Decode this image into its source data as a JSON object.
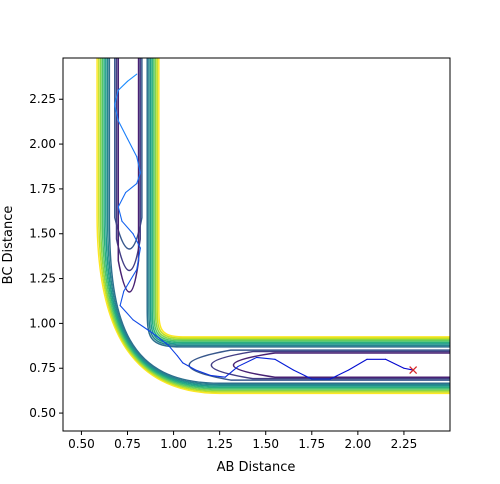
{
  "chart_data": {
    "type": "contour",
    "title": "",
    "xlabel": "AB Distance",
    "ylabel": "BC Distance",
    "xlim": [
      0.4,
      2.5
    ],
    "ylim": [
      0.4,
      2.48
    ],
    "xticks": [
      "0.50",
      "0.75",
      "1.00",
      "1.25",
      "1.50",
      "1.75",
      "2.00",
      "2.25"
    ],
    "yticks": [
      "0.50",
      "0.75",
      "1.00",
      "1.25",
      "1.50",
      "1.75",
      "2.00",
      "2.25"
    ],
    "grid": false,
    "legend": "none",
    "colormap": "viridis",
    "contour_levels": 12,
    "trajectory_color_start": "#1e90ff",
    "trajectory_color_end": "#0000cd",
    "trajectory": [
      [
        0.8,
        2.39
      ],
      [
        0.75,
        2.35
      ],
      [
        0.7,
        2.3
      ],
      [
        0.68,
        2.22
      ],
      [
        0.7,
        2.13
      ],
      [
        0.75,
        2.03
      ],
      [
        0.8,
        1.93
      ],
      [
        0.82,
        1.84
      ],
      [
        0.8,
        1.78
      ],
      [
        0.74,
        1.73
      ],
      [
        0.7,
        1.65
      ],
      [
        0.72,
        1.57
      ],
      [
        0.78,
        1.5
      ],
      [
        0.82,
        1.42
      ],
      [
        0.8,
        1.3
      ],
      [
        0.73,
        1.18
      ],
      [
        0.71,
        1.1
      ],
      [
        0.78,
        1.02
      ],
      [
        0.88,
        0.95
      ],
      [
        0.97,
        0.88
      ],
      [
        1.02,
        0.82
      ],
      [
        1.05,
        0.78
      ],
      [
        1.12,
        0.74
      ],
      [
        1.2,
        0.71
      ],
      [
        1.28,
        0.7
      ],
      [
        1.35,
        0.76
      ],
      [
        1.45,
        0.81
      ],
      [
        1.55,
        0.8
      ],
      [
        1.65,
        0.74
      ],
      [
        1.75,
        0.69
      ],
      [
        1.85,
        0.69
      ],
      [
        1.95,
        0.74
      ],
      [
        2.05,
        0.8
      ],
      [
        2.15,
        0.8
      ],
      [
        2.25,
        0.75
      ],
      [
        2.3,
        0.74
      ]
    ],
    "end_marker": {
      "x": 2.3,
      "y": 0.74,
      "symbol": "x",
      "color": "#d62728"
    }
  }
}
